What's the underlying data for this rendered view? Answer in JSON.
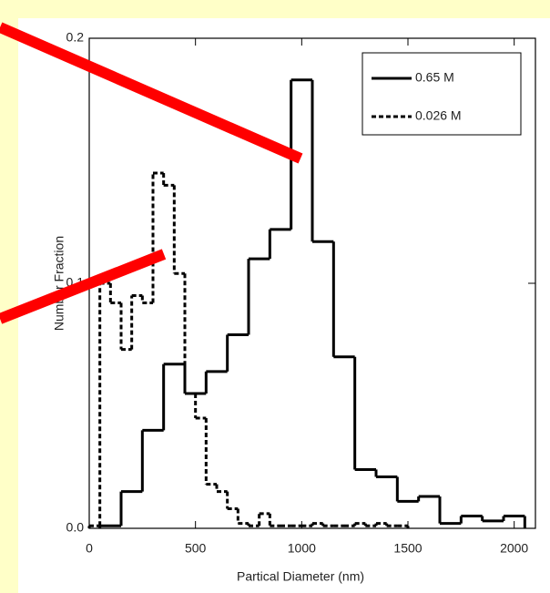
{
  "chart_data": {
    "type": "histogram",
    "xlabel": "Partical Diameter (nm)",
    "ylabel": "Number Fraction",
    "xlim": [
      0,
      2100
    ],
    "ylim": [
      0,
      0.2
    ],
    "xticks": [
      0,
      500,
      1000,
      1500,
      2000
    ],
    "yticks": [
      {
        "value": 0,
        "label": "0.0"
      },
      0.1,
      0.2
    ],
    "legend": "upper right",
    "series": [
      {
        "name": "0.65 M",
        "color": "#000000",
        "dash": "solid",
        "bins": [
          50,
          150,
          250,
          350,
          450,
          550,
          650,
          750,
          850,
          950,
          1050,
          1150,
          1250,
          1350,
          1450,
          1550,
          1650,
          1750,
          1850,
          1950,
          2050
        ],
        "values": [
          0.001,
          0.015,
          0.04,
          0.067,
          0.055,
          0.064,
          0.079,
          0.11,
          0.122,
          0.183,
          0.117,
          0.07,
          0.024,
          0.021,
          0.011,
          0.013,
          0.002,
          0.005,
          0.003,
          0.005
        ]
      },
      {
        "name": "0.026 M",
        "color": "#000000",
        "dash": "dashed",
        "bins": [
          0,
          50,
          100,
          150,
          200,
          250,
          300,
          350,
          400,
          450,
          500,
          550,
          600,
          650,
          700,
          750,
          800,
          850,
          900,
          950,
          1000,
          1050,
          1100,
          1150,
          1200,
          1250,
          1300,
          1350,
          1400,
          1450,
          1500
        ],
        "values": [
          0.001,
          0.1,
          0.092,
          0.073,
          0.095,
          0.092,
          0.145,
          0.14,
          0.104,
          0.055,
          0.045,
          0.018,
          0.015,
          0.008,
          0.002,
          0.001,
          0.006,
          0.001,
          0.001,
          0.001,
          0.001,
          0.002,
          0.001,
          0.001,
          0.001,
          0.002,
          0.001,
          0.002,
          0.001,
          0.001
        ]
      }
    ]
  }
}
